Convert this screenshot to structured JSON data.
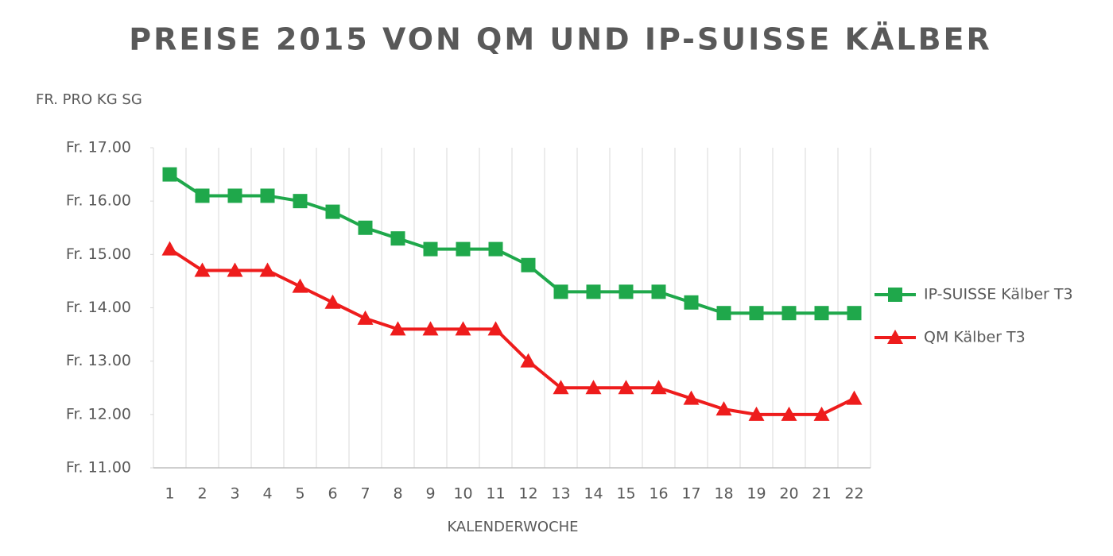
{
  "chart_data": {
    "type": "line",
    "title": "PREISE 2015 VON QM UND IP-SUISSE KÄLBER",
    "y_label": "FR. PRO KG SG",
    "x_label": "KALENDERWOCHE",
    "categories": [
      "1",
      "2",
      "3",
      "4",
      "5",
      "6",
      "7",
      "8",
      "9",
      "10",
      "11",
      "12",
      "13",
      "14",
      "15",
      "16",
      "17",
      "18",
      "19",
      "20",
      "21",
      "22"
    ],
    "series": [
      {
        "name": "IP-SUISSE Kälber T3",
        "color": "#1fa84b",
        "marker": "square",
        "values": [
          16.5,
          16.1,
          16.1,
          16.1,
          16.0,
          15.8,
          15.5,
          15.3,
          15.1,
          15.1,
          15.1,
          14.8,
          14.3,
          14.3,
          14.3,
          14.3,
          14.1,
          13.9,
          13.9,
          13.9,
          13.9,
          13.9
        ]
      },
      {
        "name": "QM Kälber T3",
        "color": "#ee1c1c",
        "marker": "triangle",
        "values": [
          15.1,
          14.7,
          14.7,
          14.7,
          14.4,
          14.1,
          13.8,
          13.6,
          13.6,
          13.6,
          13.6,
          13.0,
          12.5,
          12.5,
          12.5,
          12.5,
          12.3,
          12.1,
          12.0,
          12.0,
          12.0,
          12.3
        ]
      }
    ],
    "ylim": [
      11,
      17
    ],
    "yticks": [
      {
        "value": 11,
        "label": "Fr. 11.00"
      },
      {
        "value": 12,
        "label": "Fr. 12.00"
      },
      {
        "value": 13,
        "label": "Fr. 13.00"
      },
      {
        "value": 14,
        "label": "Fr. 14.00"
      },
      {
        "value": 15,
        "label": "Fr. 15.00"
      },
      {
        "value": 16,
        "label": "Fr. 16.00"
      },
      {
        "value": 17,
        "label": "Fr. 17.00"
      }
    ],
    "grid": true,
    "legend": "right"
  }
}
